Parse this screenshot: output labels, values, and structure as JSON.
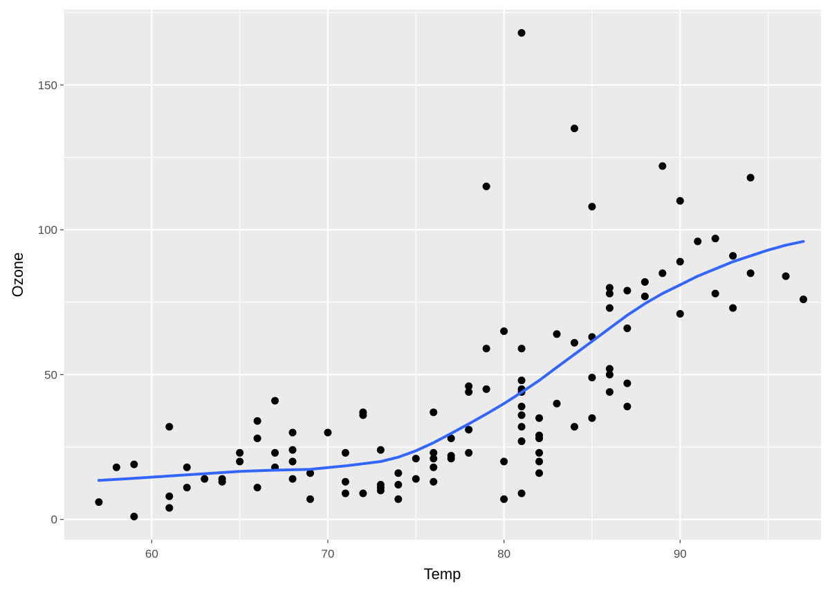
{
  "chart_data": {
    "type": "scatter",
    "xlabel": "Temp",
    "ylabel": "Ozone",
    "xlim": [
      55,
      98
    ],
    "ylim": [
      -7,
      176
    ],
    "x_ticks": [
      60,
      70,
      80,
      90
    ],
    "y_ticks": [
      0,
      50,
      100,
      150
    ],
    "x_tick_labels": [
      "60",
      "70",
      "80",
      "90"
    ],
    "y_tick_labels": [
      "0",
      "50",
      "100",
      "150"
    ],
    "grid": true,
    "colors": {
      "panel_background": "#ebebeb",
      "grid": "#ffffff",
      "points": "#000000",
      "smooth_line": "#3366ff"
    },
    "points": [
      [
        57,
        6
      ],
      [
        58,
        18
      ],
      [
        59,
        19
      ],
      [
        59,
        1
      ],
      [
        61,
        32
      ],
      [
        61,
        8
      ],
      [
        61,
        4
      ],
      [
        62,
        18
      ],
      [
        62,
        11
      ],
      [
        63,
        14
      ],
      [
        64,
        14
      ],
      [
        64,
        13
      ],
      [
        65,
        23
      ],
      [
        65,
        20
      ],
      [
        66,
        34
      ],
      [
        66,
        28
      ],
      [
        66,
        11
      ],
      [
        67,
        41
      ],
      [
        67,
        23
      ],
      [
        67,
        18
      ],
      [
        68,
        30
      ],
      [
        68,
        24
      ],
      [
        68,
        20
      ],
      [
        68,
        14
      ],
      [
        69,
        16
      ],
      [
        69,
        7
      ],
      [
        70,
        30
      ],
      [
        71,
        23
      ],
      [
        71,
        13
      ],
      [
        71,
        9
      ],
      [
        72,
        37
      ],
      [
        72,
        36
      ],
      [
        72,
        9
      ],
      [
        73,
        24
      ],
      [
        73,
        12
      ],
      [
        73,
        11
      ],
      [
        73,
        10
      ],
      [
        74,
        16
      ],
      [
        74,
        12
      ],
      [
        74,
        7
      ],
      [
        75,
        21
      ],
      [
        75,
        14
      ],
      [
        76,
        37
      ],
      [
        76,
        23
      ],
      [
        76,
        21
      ],
      [
        76,
        18
      ],
      [
        76,
        13
      ],
      [
        77,
        28
      ],
      [
        77,
        22
      ],
      [
        77,
        21
      ],
      [
        78,
        46
      ],
      [
        78,
        44
      ],
      [
        78,
        31
      ],
      [
        78,
        23
      ],
      [
        79,
        115
      ],
      [
        79,
        59
      ],
      [
        79,
        45
      ],
      [
        80,
        65
      ],
      [
        80,
        20
      ],
      [
        80,
        7
      ],
      [
        81,
        168
      ],
      [
        81,
        59
      ],
      [
        81,
        48
      ],
      [
        81,
        45
      ],
      [
        81,
        44
      ],
      [
        81,
        39
      ],
      [
        81,
        36
      ],
      [
        81,
        32
      ],
      [
        81,
        27
      ],
      [
        81,
        9
      ],
      [
        82,
        35
      ],
      [
        82,
        29
      ],
      [
        82,
        28
      ],
      [
        82,
        23
      ],
      [
        82,
        20
      ],
      [
        82,
        16
      ],
      [
        83,
        64
      ],
      [
        83,
        40
      ],
      [
        84,
        135
      ],
      [
        84,
        61
      ],
      [
        84,
        32
      ],
      [
        85,
        108
      ],
      [
        85,
        63
      ],
      [
        85,
        49
      ],
      [
        85,
        35
      ],
      [
        86,
        80
      ],
      [
        86,
        78
      ],
      [
        86,
        73
      ],
      [
        86,
        52
      ],
      [
        86,
        50
      ],
      [
        86,
        44
      ],
      [
        87,
        79
      ],
      [
        87,
        66
      ],
      [
        87,
        47
      ],
      [
        87,
        39
      ],
      [
        88,
        82
      ],
      [
        88,
        77
      ],
      [
        89,
        122
      ],
      [
        89,
        85
      ],
      [
        90,
        110
      ],
      [
        90,
        89
      ],
      [
        90,
        71
      ],
      [
        91,
        96
      ],
      [
        92,
        97
      ],
      [
        92,
        78
      ],
      [
        93,
        91
      ],
      [
        93,
        73
      ],
      [
        94,
        118
      ],
      [
        94,
        85
      ],
      [
        96,
        84
      ],
      [
        97,
        76
      ]
    ],
    "smooth_line": [
      [
        57,
        13.5
      ],
      [
        59,
        14.2
      ],
      [
        61,
        15.0
      ],
      [
        63,
        15.8
      ],
      [
        65,
        16.6
      ],
      [
        67,
        17.0
      ],
      [
        69,
        17.3
      ],
      [
        71,
        18.5
      ],
      [
        73,
        20.0
      ],
      [
        74,
        21.5
      ],
      [
        75,
        23.7
      ],
      [
        76,
        26.5
      ],
      [
        77,
        29.7
      ],
      [
        78,
        33.0
      ],
      [
        79,
        36.4
      ],
      [
        80,
        40.0
      ],
      [
        81,
        43.9
      ],
      [
        82,
        48.0
      ],
      [
        83,
        52.5
      ],
      [
        84,
        57.0
      ],
      [
        85,
        61.5
      ],
      [
        86,
        66.0
      ],
      [
        87,
        70.5
      ],
      [
        88,
        74.5
      ],
      [
        89,
        78.0
      ],
      [
        90,
        81.0
      ],
      [
        91,
        84.0
      ],
      [
        92,
        86.5
      ],
      [
        93,
        89.0
      ],
      [
        94,
        91.0
      ],
      [
        95,
        93.0
      ],
      [
        96,
        94.7
      ],
      [
        97,
        96.0
      ]
    ]
  }
}
